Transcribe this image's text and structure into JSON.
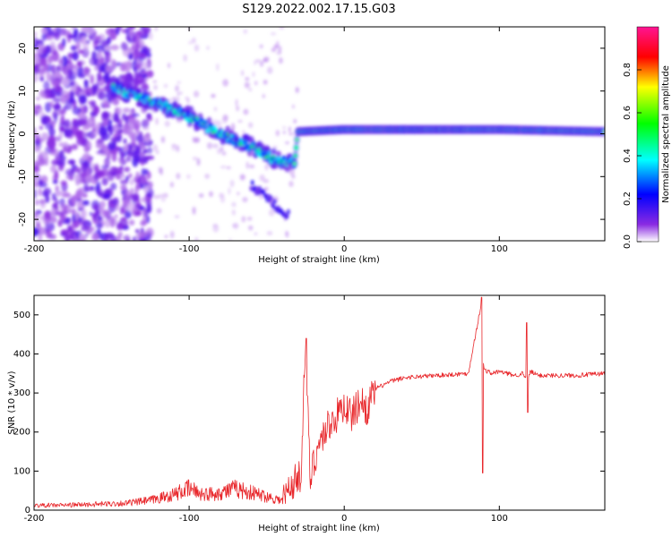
{
  "title": "S129.2022.002.17.15.G03",
  "chart_data": [
    {
      "type": "heatmap",
      "xlabel": "Height of straight line (km)",
      "ylabel": "Frequency (Hz)",
      "xlim": [
        -200,
        168
      ],
      "ylim": [
        -25,
        25
      ],
      "x_ticks": [
        -200,
        -100,
        0,
        100
      ],
      "y_ticks": [
        -20,
        -10,
        0,
        10,
        20
      ],
      "grid": false,
      "colorbar": {
        "label": "Normalized spectral amplitude",
        "range": [
          0,
          1
        ],
        "ticks": [
          "0.0",
          "0.2",
          "0.4",
          "0.6",
          "0.8"
        ],
        "colors": [
          "#ffffff",
          "#8a2be2",
          "#0000ff",
          "#00ffff",
          "#00ff00",
          "#ffff00",
          "#ff0000",
          "#ff1493"
        ]
      },
      "ridge": [
        {
          "x": -150,
          "y": 11
        },
        {
          "x": -120,
          "y": 7
        },
        {
          "x": -100,
          "y": 4
        },
        {
          "x": -80,
          "y": 0
        },
        {
          "x": -60,
          "y": -3
        },
        {
          "x": -45,
          "y": -6
        },
        {
          "x": -32,
          "y": -7
        },
        {
          "x": -30,
          "y": 0.5
        },
        {
          "x": 0,
          "y": 1
        },
        {
          "x": 50,
          "y": 1
        },
        {
          "x": 100,
          "y": 1
        },
        {
          "x": 168,
          "y": 0.5
        }
      ]
    },
    {
      "type": "line",
      "xlabel": "Height of straight line (km)",
      "ylabel": "SNR (10 * v/v)",
      "xlim": [
        -200,
        168
      ],
      "ylim": [
        0,
        550
      ],
      "x_ticks": [
        -200,
        -100,
        0,
        100
      ],
      "y_ticks": [
        0,
        100,
        200,
        300,
        400,
        500
      ],
      "grid": false,
      "series_color": "#e8262a",
      "series": [
        {
          "x": [
            -200,
            -180,
            -160,
            -140,
            -125,
            -110,
            -100,
            -90,
            -80,
            -70,
            -60,
            -50,
            -40,
            -33,
            -28,
            -25,
            -22,
            -18,
            -15,
            -10,
            -5,
            0,
            5,
            10,
            15,
            20,
            25,
            30,
            40,
            60,
            80,
            88,
            90,
            95,
            100,
            110,
            115,
            118,
            120,
            125,
            130,
            150,
            168
          ],
          "y": [
            12,
            13,
            15,
            18,
            25,
            40,
            55,
            40,
            45,
            55,
            45,
            35,
            25,
            70,
            90,
            420,
            80,
            150,
            180,
            220,
            240,
            270,
            240,
            280,
            260,
            310,
            320,
            330,
            340,
            345,
            350,
            520,
            360,
            350,
            355,
            345,
            350,
            330,
            355,
            345,
            345,
            345,
            350
          ]
        }
      ]
    }
  ]
}
